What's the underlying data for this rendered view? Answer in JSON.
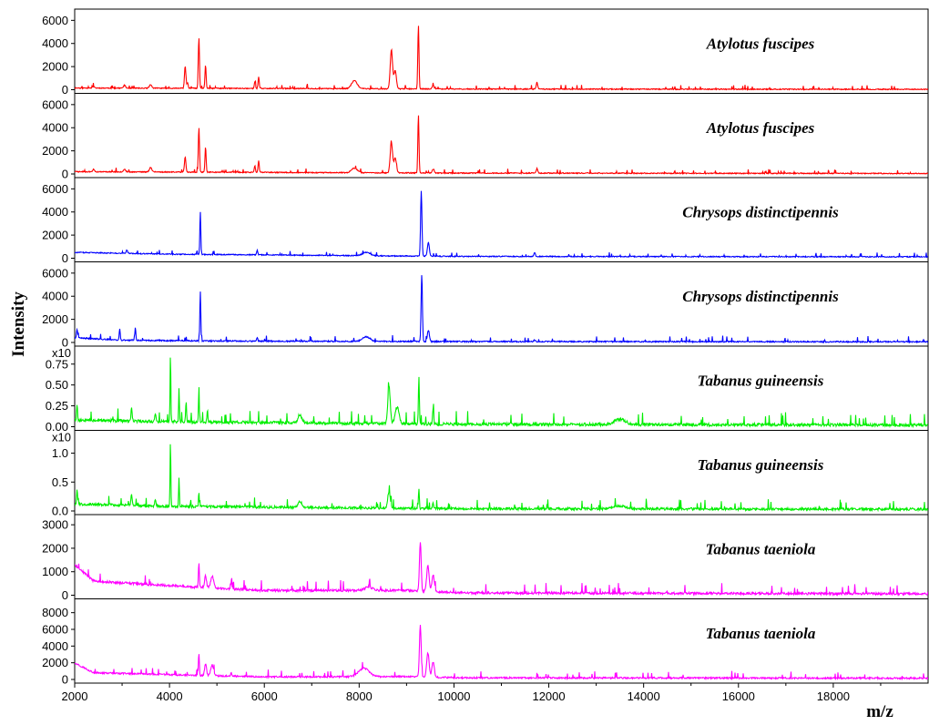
{
  "chart_data": {
    "type": "line",
    "xlabel": "m/z",
    "ylabel": "Intensity",
    "xlim": [
      2000,
      20000
    ],
    "x_ticks": [
      "2000",
      "4000",
      "6000",
      "8000",
      "10000",
      "12000",
      "14000",
      "16000",
      "18000"
    ],
    "x_tick_values": [
      2000,
      4000,
      6000,
      8000,
      10000,
      12000,
      14000,
      16000,
      18000
    ],
    "panels": [
      {
        "name": "Atylotus fuscipes",
        "color": "#ff0000",
        "y_prefix": "",
        "ylim": [
          0,
          6500
        ],
        "y_ticks": [
          "0",
          "2000",
          "4000",
          "6000"
        ],
        "y_tick_values": [
          0,
          2000,
          4000,
          6000
        ],
        "baseline": [
          [
            2000,
            150
          ],
          [
            7000,
            100
          ],
          [
            10000,
            60
          ],
          [
            20000,
            30
          ]
        ],
        "noise": 60,
        "seed": 11,
        "peaks": [
          [
            2400,
            150,
            20
          ],
          [
            3050,
            250,
            20
          ],
          [
            3600,
            300,
            25
          ],
          [
            4330,
            1900,
            15
          ],
          [
            4380,
            500,
            12
          ],
          [
            4620,
            4400,
            12
          ],
          [
            4760,
            2000,
            12
          ],
          [
            5800,
            600,
            12
          ],
          [
            5880,
            1000,
            12
          ],
          [
            7900,
            700,
            60
          ],
          [
            8680,
            3300,
            25
          ],
          [
            8760,
            1600,
            25
          ],
          [
            9250,
            5500,
            12
          ],
          [
            9560,
            300,
            20
          ],
          [
            11750,
            600,
            15
          ]
        ]
      },
      {
        "name": "Atylotus fuscipes",
        "color": "#ff0000",
        "y_prefix": "",
        "ylim": [
          0,
          6500
        ],
        "y_ticks": [
          "0",
          "2000",
          "4000",
          "6000"
        ],
        "y_tick_values": [
          0,
          2000,
          4000,
          6000
        ],
        "baseline": [
          [
            2000,
            200
          ],
          [
            7000,
            120
          ],
          [
            10000,
            80
          ],
          [
            20000,
            40
          ]
        ],
        "noise": 60,
        "seed": 23,
        "peaks": [
          [
            2400,
            200,
            20
          ],
          [
            3050,
            250,
            20
          ],
          [
            3600,
            400,
            25
          ],
          [
            4330,
            1300,
            15
          ],
          [
            4620,
            3900,
            12
          ],
          [
            4760,
            2200,
            12
          ],
          [
            5800,
            600,
            12
          ],
          [
            5880,
            1000,
            12
          ],
          [
            7900,
            400,
            60
          ],
          [
            8680,
            2600,
            25
          ],
          [
            8760,
            1300,
            25
          ],
          [
            9250,
            5000,
            12
          ],
          [
            9560,
            300,
            20
          ],
          [
            11750,
            400,
            15
          ]
        ]
      },
      {
        "name": "Chrysops distinctipennis",
        "color": "#0000ff",
        "y_prefix": "",
        "ylim": [
          0,
          6500
        ],
        "y_ticks": [
          "0",
          "2000",
          "4000",
          "6000"
        ],
        "y_tick_values": [
          0,
          2000,
          4000,
          6000
        ],
        "baseline": [
          [
            2000,
            500
          ],
          [
            4000,
            350
          ],
          [
            8000,
            220
          ],
          [
            10000,
            160
          ],
          [
            20000,
            120
          ]
        ],
        "noise": 60,
        "seed": 37,
        "peaks": [
          [
            3100,
            300,
            15
          ],
          [
            4650,
            3700,
            10
          ],
          [
            5850,
            400,
            12
          ],
          [
            8150,
            300,
            80
          ],
          [
            9310,
            5600,
            14
          ],
          [
            9460,
            1200,
            20
          ],
          [
            11700,
            350,
            15
          ]
        ]
      },
      {
        "name": "Chrysops distinctipennis",
        "color": "#0000ff",
        "y_prefix": "",
        "ylim": [
          0,
          6500
        ],
        "y_ticks": [
          "0",
          "2000",
          "4000",
          "6000"
        ],
        "y_tick_values": [
          0,
          2000,
          4000,
          6000
        ],
        "baseline": [
          [
            2000,
            400
          ],
          [
            3000,
            200
          ],
          [
            5000,
            120
          ],
          [
            10000,
            80
          ],
          [
            20000,
            60
          ]
        ],
        "noise": 80,
        "seed": 41,
        "peaks": [
          [
            2050,
            700,
            12
          ],
          [
            2950,
            1000,
            10
          ],
          [
            3280,
            1100,
            10
          ],
          [
            4650,
            4300,
            10
          ],
          [
            5850,
            300,
            12
          ],
          [
            8150,
            400,
            80
          ],
          [
            9320,
            5500,
            14
          ],
          [
            9460,
            1000,
            20
          ],
          [
            11700,
            150,
            15
          ]
        ]
      },
      {
        "name": "Tabanus guineensis",
        "color": "#00ee00",
        "y_prefix": "x10",
        "ylim": [
          0,
          0.9
        ],
        "y_ticks": [
          "0.00",
          "0.25",
          "0.50",
          "0.75"
        ],
        "y_tick_values": [
          0,
          0.25,
          0.5,
          0.75
        ],
        "baseline": [
          [
            2000,
            0.08
          ],
          [
            4000,
            0.06
          ],
          [
            10000,
            0.03
          ],
          [
            20000,
            0.02
          ]
        ],
        "noise": 0.025,
        "seed": 53,
        "peaks": [
          [
            2050,
            0.2,
            10
          ],
          [
            3200,
            0.15,
            12
          ],
          [
            3700,
            0.1,
            12
          ],
          [
            4020,
            0.82,
            8
          ],
          [
            4200,
            0.4,
            8
          ],
          [
            4350,
            0.25,
            10
          ],
          [
            4620,
            0.42,
            8
          ],
          [
            4800,
            0.15,
            10
          ],
          [
            6750,
            0.1,
            40
          ],
          [
            8630,
            0.45,
            25
          ],
          [
            8800,
            0.2,
            40
          ],
          [
            9260,
            0.58,
            10
          ],
          [
            9560,
            0.18,
            12
          ],
          [
            13500,
            0.06,
            120
          ]
        ]
      },
      {
        "name": "Tabanus guineensis",
        "color": "#00ee00",
        "y_prefix": "x10",
        "ylim": [
          0,
          1.3
        ],
        "y_ticks": [
          "0.0",
          "0.5",
          "1.0"
        ],
        "y_tick_values": [
          0,
          0.5,
          1.0
        ],
        "baseline": [
          [
            2000,
            0.12
          ],
          [
            4000,
            0.08
          ],
          [
            10000,
            0.04
          ],
          [
            20000,
            0.03
          ]
        ],
        "noise": 0.03,
        "seed": 67,
        "peaks": [
          [
            2050,
            0.25,
            10
          ],
          [
            3200,
            0.2,
            12
          ],
          [
            3700,
            0.12,
            12
          ],
          [
            4020,
            1.15,
            8
          ],
          [
            4200,
            0.5,
            8
          ],
          [
            4620,
            0.25,
            8
          ],
          [
            6750,
            0.1,
            40
          ],
          [
            8630,
            0.3,
            25
          ],
          [
            9260,
            0.35,
            10
          ],
          [
            9560,
            0.1,
            12
          ],
          [
            13500,
            0.05,
            120
          ]
        ]
      },
      {
        "name": "Tabanus taeniola",
        "color": "#ff00ff",
        "y_prefix": "",
        "ylim": [
          0,
          3200
        ],
        "y_ticks": [
          "0",
          "1000",
          "2000",
          "3000"
        ],
        "y_tick_values": [
          0,
          1000,
          2000,
          3000
        ],
        "baseline": [
          [
            2000,
            1300
          ],
          [
            2400,
            600
          ],
          [
            4500,
            350
          ],
          [
            6000,
            200
          ],
          [
            9000,
            200
          ],
          [
            10200,
            100
          ],
          [
            20000,
            60
          ]
        ],
        "noise": 70,
        "seed": 79,
        "peaks": [
          [
            4620,
            1000,
            10
          ],
          [
            4760,
            500,
            20
          ],
          [
            4900,
            500,
            30
          ],
          [
            5300,
            200,
            12
          ],
          [
            8200,
            150,
            80
          ],
          [
            9290,
            2100,
            18
          ],
          [
            9450,
            1100,
            25
          ],
          [
            9560,
            700,
            25
          ]
        ]
      },
      {
        "name": "Tabanus taeniola",
        "color": "#ff00ff",
        "y_prefix": "",
        "ylim": [
          0,
          9000
        ],
        "y_ticks": [
          "0",
          "2000",
          "4000",
          "6000",
          "8000"
        ],
        "y_tick_values": [
          0,
          2000,
          4000,
          6000,
          8000
        ],
        "baseline": [
          [
            2000,
            2000
          ],
          [
            2400,
            800
          ],
          [
            4500,
            500
          ],
          [
            6000,
            300
          ],
          [
            9000,
            350
          ],
          [
            10200,
            200
          ],
          [
            20000,
            150
          ]
        ],
        "noise": 140,
        "seed": 97,
        "peaks": [
          [
            4620,
            2700,
            10
          ],
          [
            4760,
            1400,
            20
          ],
          [
            4900,
            1300,
            30
          ],
          [
            5300,
            500,
            12
          ],
          [
            8100,
            1000,
            110
          ],
          [
            9290,
            6200,
            18
          ],
          [
            9450,
            2900,
            25
          ],
          [
            9560,
            1800,
            25
          ]
        ]
      }
    ]
  }
}
